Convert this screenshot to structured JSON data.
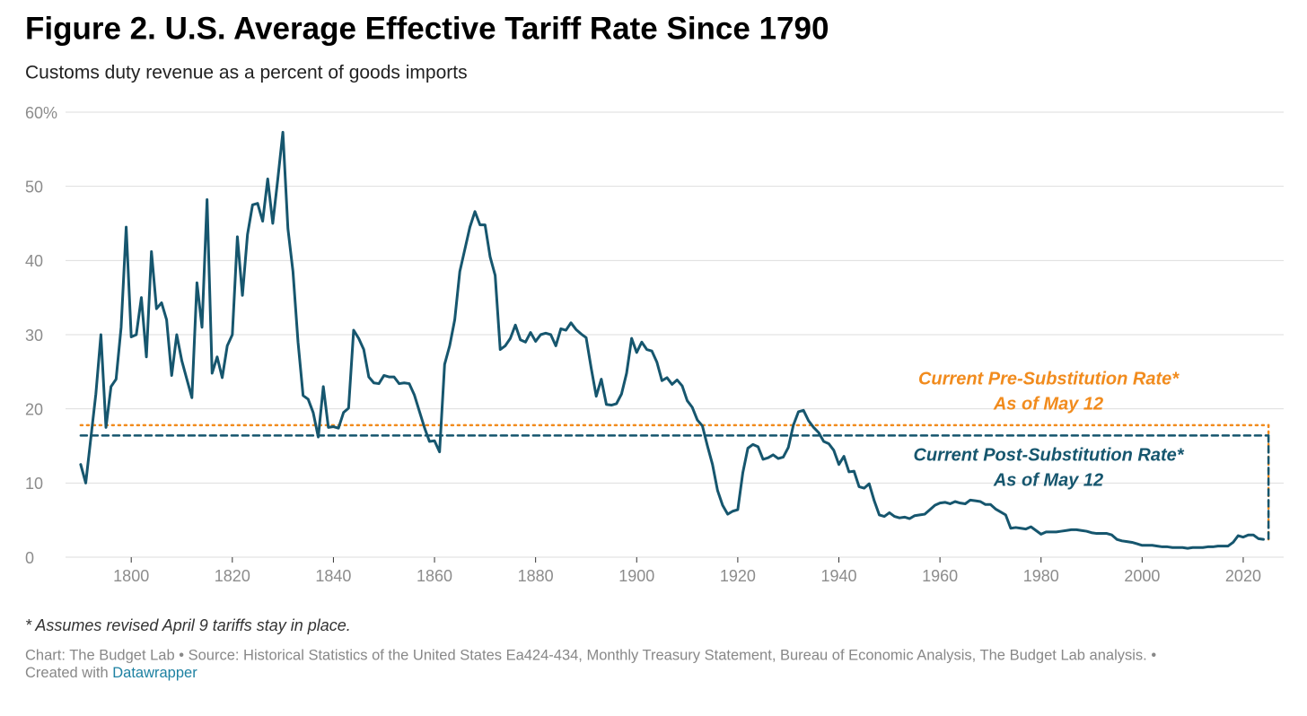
{
  "chart_data": {
    "type": "line",
    "title": "Figure 2. U.S. Average Effective Tariff Rate Since 1790",
    "subtitle": "Customs duty revenue as a percent of goods imports",
    "x": [
      1790,
      1791,
      1792,
      1793,
      1794,
      1795,
      1796,
      1797,
      1798,
      1799,
      1800,
      1801,
      1802,
      1803,
      1804,
      1805,
      1806,
      1807,
      1808,
      1809,
      1810,
      1811,
      1812,
      1813,
      1814,
      1815,
      1816,
      1817,
      1818,
      1819,
      1820,
      1821,
      1822,
      1823,
      1824,
      1825,
      1826,
      1827,
      1828,
      1829,
      1830,
      1831,
      1832,
      1833,
      1834,
      1835,
      1836,
      1837,
      1838,
      1839,
      1840,
      1841,
      1842,
      1843,
      1844,
      1845,
      1846,
      1847,
      1848,
      1849,
      1850,
      1851,
      1852,
      1853,
      1854,
      1855,
      1856,
      1857,
      1858,
      1859,
      1860,
      1861,
      1862,
      1863,
      1864,
      1865,
      1866,
      1867,
      1868,
      1869,
      1870,
      1871,
      1872,
      1873,
      1874,
      1875,
      1876,
      1877,
      1878,
      1879,
      1880,
      1881,
      1882,
      1883,
      1884,
      1885,
      1886,
      1887,
      1888,
      1889,
      1890,
      1891,
      1892,
      1893,
      1894,
      1895,
      1896,
      1897,
      1898,
      1899,
      1900,
      1901,
      1902,
      1903,
      1904,
      1905,
      1906,
      1907,
      1908,
      1909,
      1910,
      1911,
      1912,
      1913,
      1914,
      1915,
      1916,
      1917,
      1918,
      1919,
      1920,
      1921,
      1922,
      1923,
      1924,
      1925,
      1926,
      1927,
      1928,
      1929,
      1930,
      1931,
      1932,
      1933,
      1934,
      1935,
      1936,
      1937,
      1938,
      1939,
      1940,
      1941,
      1942,
      1943,
      1944,
      1945,
      1946,
      1947,
      1948,
      1949,
      1950,
      1951,
      1952,
      1953,
      1954,
      1955,
      1956,
      1957,
      1958,
      1959,
      1960,
      1961,
      1962,
      1963,
      1964,
      1965,
      1966,
      1967,
      1968,
      1969,
      1970,
      1971,
      1972,
      1973,
      1974,
      1975,
      1976,
      1977,
      1978,
      1979,
      1980,
      1981,
      1982,
      1983,
      1984,
      1985,
      1986,
      1987,
      1988,
      1989,
      1990,
      1991,
      1992,
      1993,
      1994,
      1995,
      1996,
      1997,
      1998,
      1999,
      2000,
      2001,
      2002,
      2003,
      2004,
      2005,
      2006,
      2007,
      2008,
      2009,
      2010,
      2011,
      2012,
      2013,
      2014,
      2015,
      2016,
      2017,
      2018,
      2019,
      2020,
      2021,
      2022,
      2023,
      2024
    ],
    "series": [
      {
        "color": "#16566e",
        "values": [
          12.5,
          10,
          16,
          22,
          30,
          17.5,
          23,
          24,
          31,
          44.5,
          29.7,
          30,
          35,
          27,
          41.2,
          33.5,
          34.3,
          32,
          24.5,
          30,
          26.5,
          24,
          21.5,
          37,
          31,
          48.2,
          24.8,
          27,
          24.2,
          28.5,
          30,
          43.2,
          35.3,
          43.5,
          47.5,
          47.7,
          45.3,
          51,
          45,
          51,
          57.3,
          44.3,
          38.5,
          29,
          21.8,
          21.3,
          19.5,
          16.2,
          23,
          17.5,
          17.6,
          17.4,
          19.5,
          20.1,
          30.6,
          29.5,
          28,
          24.3,
          23.5,
          23.4,
          24.5,
          24.3,
          24.3,
          23.4,
          23.5,
          23.4,
          21.9,
          19.7,
          17.5,
          15.6,
          15.7,
          14.2,
          26,
          28.5,
          32,
          38.5,
          41.5,
          44.5,
          46.6,
          44.8,
          44.8,
          40.5,
          38,
          28,
          28.5,
          29.5,
          31.3,
          29.3,
          29,
          30.3,
          29.1,
          30,
          30.2,
          30,
          28.5,
          30.8,
          30.6,
          31.6,
          30.7,
          30.1,
          29.6,
          25.5,
          21.7,
          24,
          20.6,
          20.5,
          20.7,
          22,
          24.8,
          29.5,
          27.6,
          29,
          28,
          27.8,
          26.3,
          23.8,
          24.2,
          23.3,
          23.9,
          23.1,
          21.1,
          20.2,
          18.5,
          17.7,
          15,
          12.5,
          9,
          7,
          5.8,
          6.2,
          6.4,
          11.4,
          14.7,
          15.2,
          14.9,
          13.2,
          13.4,
          13.8,
          13.3,
          13.5,
          14.8,
          17.8,
          19.6,
          19.8,
          18.4,
          17.5,
          16.8,
          15.6,
          15.3,
          14.4,
          12.5,
          13.6,
          11.5,
          11.6,
          9.5,
          9.3,
          9.9,
          7.6,
          5.7,
          5.5,
          6,
          5.5,
          5.3,
          5.4,
          5.2,
          5.6,
          5.7,
          5.8,
          6.4,
          7,
          7.3,
          7.4,
          7.2,
          7.5,
          7.3,
          7.2,
          7.7,
          7.6,
          7.5,
          7.1,
          7.1,
          6.5,
          6.1,
          5.7,
          3.9,
          4,
          3.9,
          3.8,
          4.1,
          3.6,
          3.1,
          3.4,
          3.4,
          3.4,
          3.5,
          3.6,
          3.7,
          3.7,
          3.6,
          3.5,
          3.3,
          3.2,
          3.2,
          3.2,
          3,
          2.4,
          2.2,
          2.1,
          2,
          1.8,
          1.6,
          1.6,
          1.6,
          1.5,
          1.4,
          1.4,
          1.3,
          1.3,
          1.3,
          1.2,
          1.3,
          1.3,
          1.3,
          1.4,
          1.4,
          1.5,
          1.5,
          1.5,
          2,
          2.9,
          2.7,
          3,
          3,
          2.5,
          2.4
        ]
      }
    ],
    "reference_lines": [
      {
        "label_lines": [
          "Current Pre-Substitution Rate*",
          "As of May 12"
        ],
        "value": 17.8,
        "xrange": [
          1790,
          2025
        ],
        "color": "#f18b1d",
        "style": "dotted"
      },
      {
        "label_lines": [
          "Current Post-Substitution Rate*",
          "As of May 12"
        ],
        "value": 16.4,
        "xrange": [
          1790,
          2025
        ],
        "color": "#16566e",
        "style": "dashed"
      }
    ],
    "xlim": [
      1787,
      2028
    ],
    "xticks": [
      1800,
      1820,
      1840,
      1860,
      1880,
      1900,
      1920,
      1940,
      1960,
      1980,
      2000,
      2020
    ],
    "ylim": [
      0,
      60
    ],
    "yticks": [
      0,
      10,
      20,
      30,
      40,
      50,
      {
        "value": 60,
        "label": "60%"
      }
    ],
    "grid": true,
    "footnote": "* Assumes revised April 9 tariffs stay in place.",
    "source": "Chart: The Budget Lab • Source: Historical Statistics of the United States Ea424-434, Monthly Treasury Statement, Bureau of Economic Analysis, The Budget Lab analysis. •",
    "credit": "Created with",
    "credit_link": "Datawrapper"
  }
}
